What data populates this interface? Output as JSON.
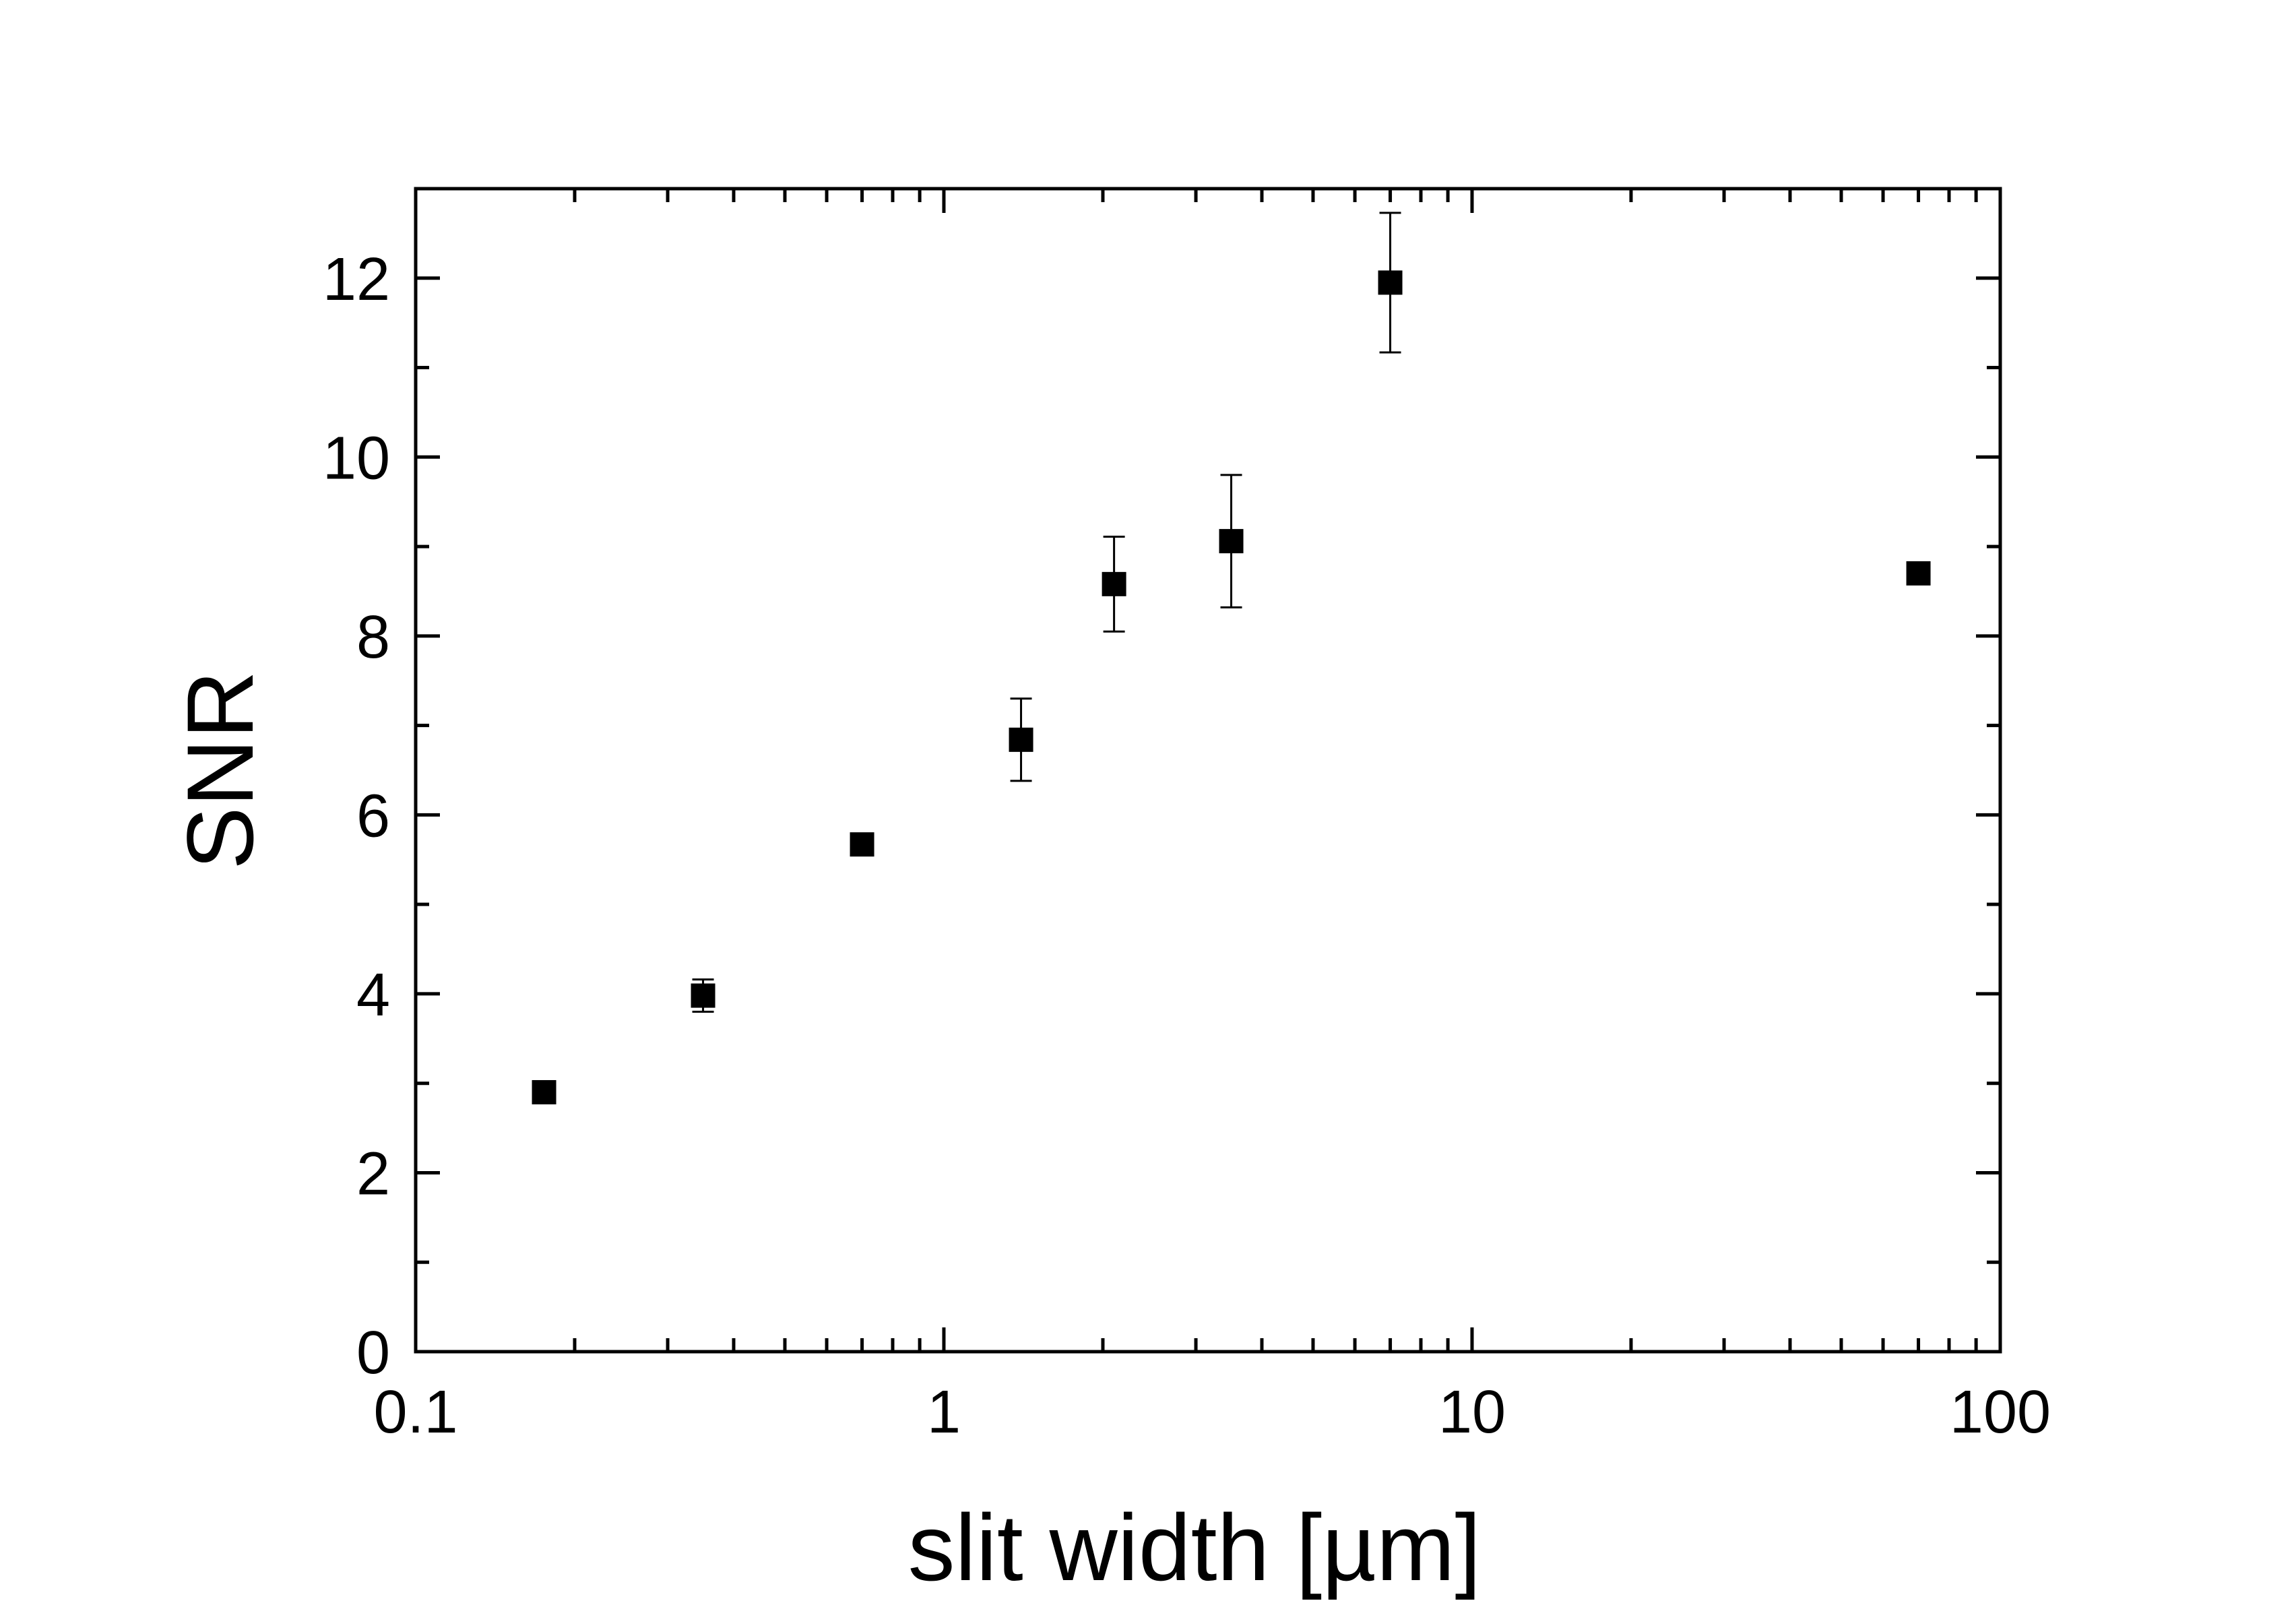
{
  "chart_data": {
    "type": "scatter",
    "xlabel": "slit width [µm]",
    "ylabel": "SNR",
    "x_scale": "log",
    "xlim": [
      0.1,
      100
    ],
    "ylim": [
      0,
      13
    ],
    "x_ticks": [
      0.1,
      1,
      10,
      100
    ],
    "x_tick_labels": [
      "0.1",
      "1",
      "10",
      "100"
    ],
    "y_ticks": [
      0,
      2,
      4,
      6,
      8,
      10,
      12
    ],
    "y_tick_labels": [
      "0",
      "2",
      "4",
      "6",
      "8",
      "10",
      "12"
    ],
    "grid": false,
    "legend": "none",
    "marker": "filled-square",
    "color": "#000000",
    "points": [
      {
        "x": 0.175,
        "y": 2.9,
        "err": 0
      },
      {
        "x": 0.35,
        "y": 3.98,
        "err": 0.18
      },
      {
        "x": 0.7,
        "y": 5.67,
        "err": 0
      },
      {
        "x": 1.4,
        "y": 6.84,
        "err": 0.46
      },
      {
        "x": 2.1,
        "y": 8.58,
        "err": 0.53
      },
      {
        "x": 3.5,
        "y": 9.06,
        "err": 0.74
      },
      {
        "x": 7.0,
        "y": 11.95,
        "err": 0.78
      },
      {
        "x": 70.0,
        "y": 8.7,
        "err": 0
      }
    ]
  }
}
